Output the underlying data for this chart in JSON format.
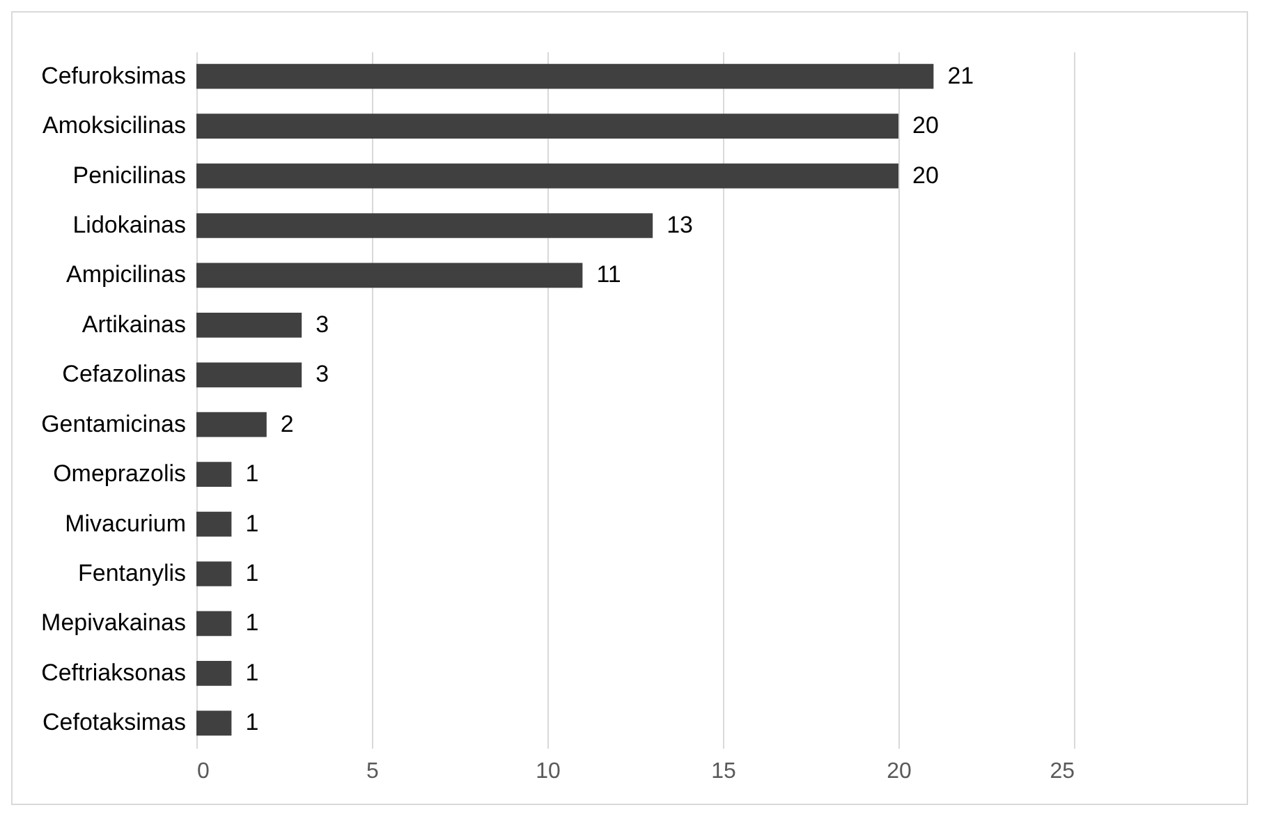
{
  "chart_data": {
    "type": "bar",
    "orientation": "horizontal",
    "categories": [
      "Cefuroksimas",
      "Amoksicilinas",
      "Penicilinas",
      "Lidokainas",
      "Ampicilinas",
      "Artikainas",
      "Cefazolinas",
      "Gentamicinas",
      "Omeprazolis",
      "Mivacurium",
      "Fentanylis",
      "Mepivakainas",
      "Ceftriaksonas",
      "Cefotaksimas"
    ],
    "values": [
      21,
      20,
      20,
      13,
      11,
      3,
      3,
      2,
      1,
      1,
      1,
      1,
      1,
      1
    ],
    "color": "#404040",
    "xlim": [
      0,
      25
    ],
    "xticks": [
      0,
      5,
      10,
      15,
      20,
      25
    ],
    "grid": "x",
    "data_labels": true
  }
}
